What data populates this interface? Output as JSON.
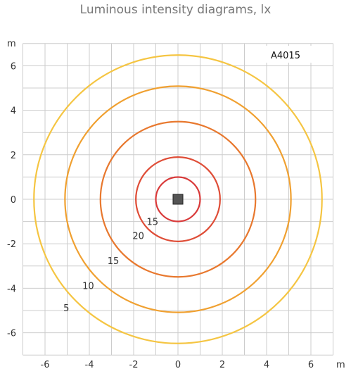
{
  "chart_data": {
    "type": "contour",
    "title": "Luminous intensity diagrams, lx",
    "model_label": "A4015",
    "x_unit": "m",
    "y_unit": "m",
    "xlim": [
      -7,
      7
    ],
    "ylim": [
      -7,
      7
    ],
    "grid": true,
    "x_ticks": [
      -6,
      -4,
      -2,
      0,
      2,
      4,
      6
    ],
    "y_ticks": [
      6,
      4,
      2,
      0,
      -2,
      -4,
      -6
    ],
    "contours": [
      {
        "radius_m": 6.5,
        "label": "5",
        "color": "#f5c542"
      },
      {
        "radius_m": 5.1,
        "label": "10",
        "color": "#f0a030"
      },
      {
        "radius_m": 3.5,
        "label": "15",
        "color": "#e8782e"
      },
      {
        "radius_m": 1.9,
        "label": "20",
        "color": "#df4d37"
      },
      {
        "radius_m": 1.0,
        "label": "15",
        "color": "#d93a3a"
      }
    ]
  }
}
